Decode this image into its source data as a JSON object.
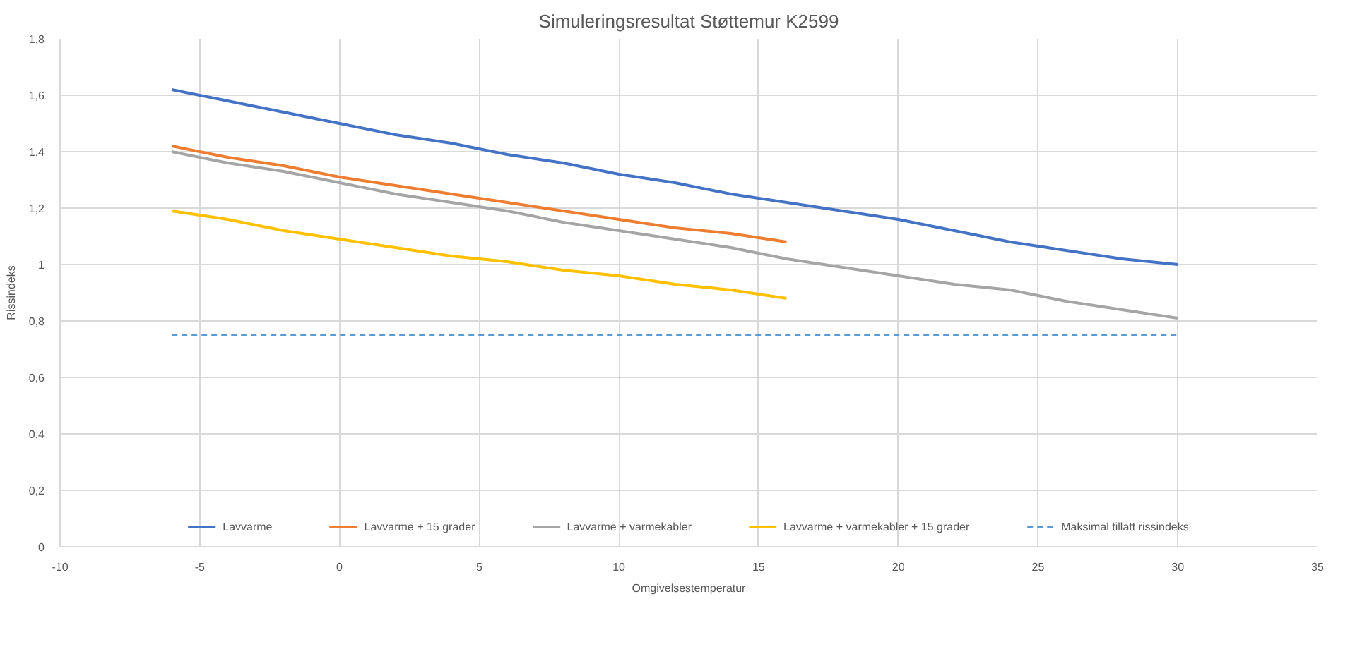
{
  "chart_data": {
    "type": "line",
    "title": "Simuleringsresultat Støttemur K2599",
    "xlabel": "Omgivelsestemperatur",
    "ylabel": "Rissindeks",
    "x": [
      -6,
      -4,
      -2,
      0,
      2,
      4,
      6,
      8,
      10,
      12,
      14,
      16,
      18,
      20,
      22,
      24,
      26,
      28,
      30
    ],
    "series": [
      {
        "name": "Lavvarme",
        "color": "#4472c4",
        "values": [
          1.62,
          1.58,
          1.54,
          1.5,
          1.46,
          1.43,
          1.39,
          1.36,
          1.32,
          1.29,
          1.25,
          1.22,
          1.19,
          1.16,
          1.12,
          1.08,
          1.05,
          1.02,
          1.0
        ]
      },
      {
        "name": "Lavvarme + 15 grader",
        "color": "#ed7d31",
        "values": [
          1.42,
          1.38,
          1.35,
          1.31,
          1.28,
          1.25,
          1.22,
          1.19,
          1.16,
          1.13,
          1.11,
          1.08,
          null,
          null,
          null,
          null,
          null,
          null,
          null
        ]
      },
      {
        "name": "Lavvarme + varmekabler",
        "color": "#a5a5a5",
        "values": [
          1.4,
          1.36,
          1.33,
          1.29,
          1.25,
          1.22,
          1.19,
          1.15,
          1.12,
          1.09,
          1.06,
          1.02,
          0.99,
          0.96,
          0.93,
          0.91,
          0.87,
          0.84,
          0.81
        ]
      },
      {
        "name": "Lavvarme + varmekabler + 15 grader",
        "color": "#ffc000",
        "values": [
          1.19,
          1.16,
          1.12,
          1.09,
          1.06,
          1.03,
          1.01,
          0.98,
          0.96,
          0.93,
          0.91,
          0.88,
          null,
          null,
          null,
          null,
          null,
          null,
          null
        ]
      },
      {
        "name": "Maksimal tillatt rissindeks",
        "color": "#5b9bd5",
        "line_style": "dashed",
        "x": [
          -6,
          30
        ],
        "values": [
          0.75,
          0.75
        ]
      }
    ],
    "xlim": [
      -10,
      35
    ],
    "xticks": [
      -10,
      -5,
      0,
      5,
      10,
      15,
      20,
      25,
      30,
      35
    ],
    "ylim": [
      0,
      1.8
    ],
    "yticks": [
      {
        "value": 0,
        "label": "0"
      },
      {
        "value": 0.2,
        "label": "0,2"
      },
      {
        "value": 0.4,
        "label": "0,4"
      },
      {
        "value": 0.6,
        "label": "0,6"
      },
      {
        "value": 0.8,
        "label": "0,8"
      },
      {
        "value": 1,
        "label": "1"
      },
      {
        "value": 1.2,
        "label": "1,2"
      },
      {
        "value": 1.4,
        "label": "1,4"
      },
      {
        "value": 1.6,
        "label": "1,6"
      },
      {
        "value": 1.8,
        "label": "1,8"
      }
    ],
    "grid": true,
    "legend": "bottom",
    "line_style": "solid"
  }
}
